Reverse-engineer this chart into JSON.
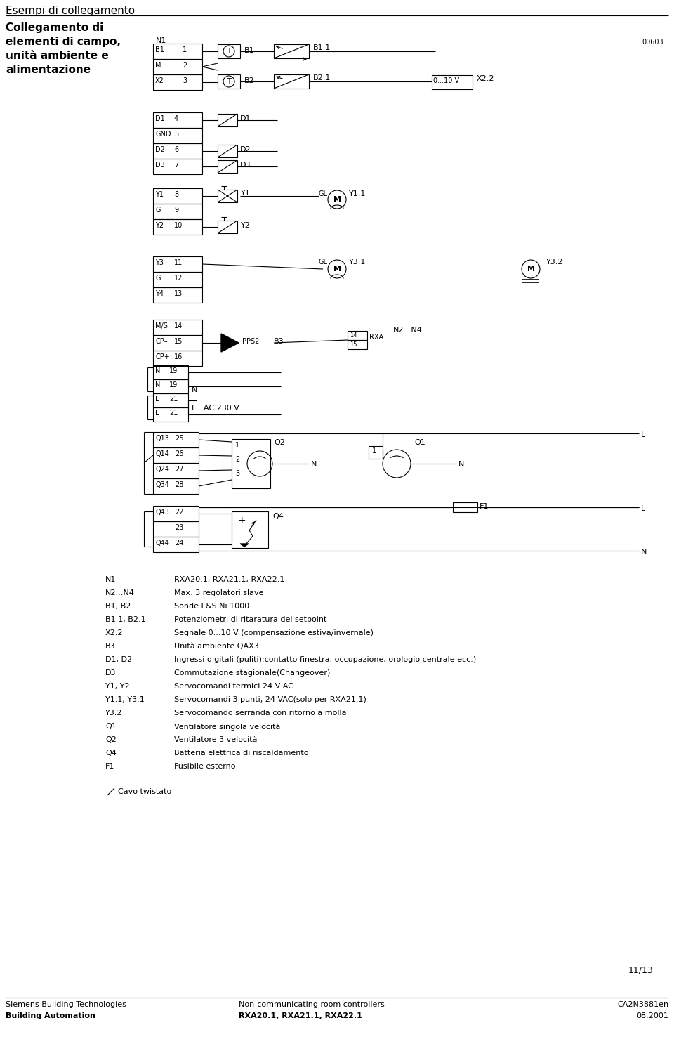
{
  "page_title": "Esempi di collegamento",
  "left_title_lines": [
    "Collegamento di",
    "elementi di campo,",
    "unità ambiente e",
    "alimentazione"
  ],
  "code_top_right": "00603",
  "bg_color": "#ffffff",
  "text_color": "#000000",
  "legend_items": [
    [
      "N1",
      "RXA20.1, RXA21.1, RXA22.1"
    ],
    [
      "N2...N4",
      "Max. 3 regolatori slave"
    ],
    [
      "B1, B2",
      "Sonde L&S Ni 1000"
    ],
    [
      "B1.1, B2.1",
      "Potenziometri di ritaratura del setpoint"
    ],
    [
      "X2.2",
      "Segnale 0...10 V (compensazione estiva/invernale)"
    ],
    [
      "B3",
      "Unità ambiente QAX3..."
    ],
    [
      "D1, D2",
      "Ingressi digitali (puliti):contatto finestra, occupazione, orologio centrale ecc.)"
    ],
    [
      "D3",
      "Commutazione stagionale(Changeover)"
    ],
    [
      "Y1, Y2",
      "Servocomandi termici 24 V AC"
    ],
    [
      "Y1.1, Y3.1",
      "Servocomandi 3 punti, 24 VAC(solo per RXA21.1)"
    ],
    [
      "Y3.2",
      "Servocomando serranda con ritorno a molla"
    ],
    [
      "Q1",
      "Ventilatore singola velocità"
    ],
    [
      "Q2",
      "Ventilatore 3 velocità"
    ],
    [
      "Q4",
      "Batteria elettrica di riscaldamento"
    ],
    [
      "F1",
      "Fusibile esterno"
    ]
  ],
  "footer_left1": "Siemens Building Technologies",
  "footer_left2": "Building Automation",
  "footer_center1": "Non-communicating room controllers",
  "footer_center2": "RXA20.1, RXA21.1, RXA22.1",
  "footer_right1": "CA2N3881en",
  "footer_right2": "08.2001",
  "page_num": "11/13",
  "twisted_label": "Cavo twistato"
}
